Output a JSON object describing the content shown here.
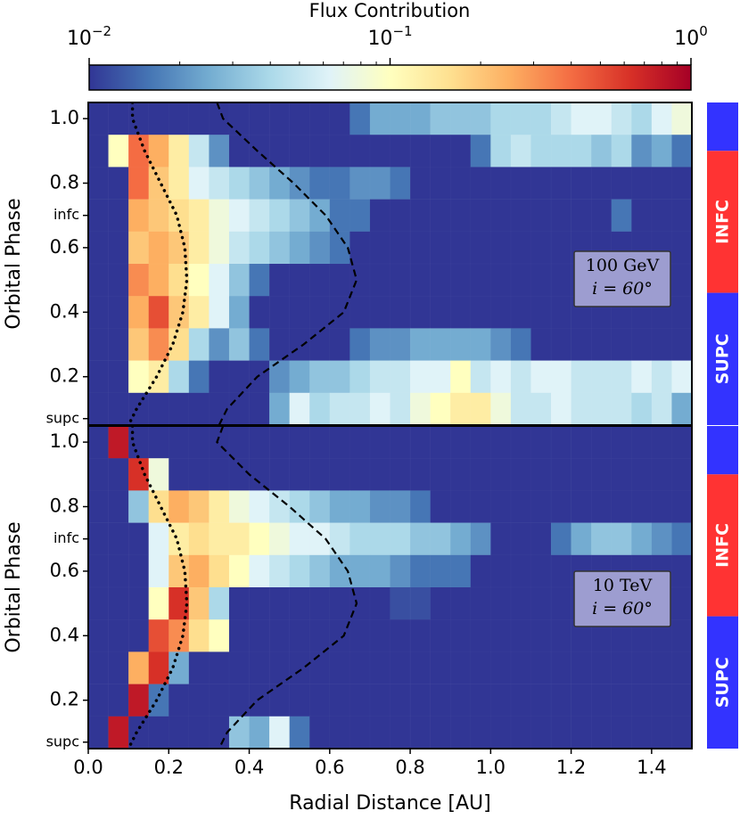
{
  "colorbar": {
    "title": "Flux Contribution",
    "lim": [
      0.01,
      1
    ],
    "log_scale": true,
    "ticks": [
      {
        "value": 0.01,
        "label": "10",
        "exponent": "−2"
      },
      {
        "value": 0.1,
        "label": "10",
        "exponent": "−1"
      },
      {
        "value": 1,
        "label": "10",
        "exponent": "0"
      }
    ],
    "minor_ticks": [
      0.02,
      0.03,
      0.04,
      0.05,
      0.06,
      0.07,
      0.08,
      0.09,
      0.2,
      0.3,
      0.4,
      0.5,
      0.6,
      0.7,
      0.8,
      0.9
    ],
    "colormap": [
      "#313695",
      "#4575b4",
      "#74add1",
      "#abd9e9",
      "#e0f3f8",
      "#ffffbf",
      "#fee090",
      "#fdae61",
      "#f46d43",
      "#d73027",
      "#a50026"
    ]
  },
  "chart_data": [
    {
      "type": "heatmap",
      "ylabel": "Orbital Phase",
      "xlim": [
        0,
        1.5
      ],
      "ylim": [
        0.05,
        1.05
      ],
      "yticks": [
        0.2,
        0.4,
        0.6,
        0.8,
        {
          "value": 1,
          "label": "1.0"
        },
        {
          "value": 0.7,
          "label": "infc"
        },
        {
          "value": 0.07,
          "label": "supc"
        }
      ],
      "x_bins": [
        0,
        0.05,
        0.1,
        0.15,
        0.2,
        0.25,
        0.3,
        0.35,
        0.4,
        0.45,
        0.5,
        0.55,
        0.6,
        0.65,
        0.7,
        0.75,
        0.8,
        0.85,
        0.9,
        0.95,
        1,
        1.05,
        1.1,
        1.15,
        1.2,
        1.25,
        1.3,
        1.35,
        1.4,
        1.45,
        1.5
      ],
      "y_bins": [
        1.05,
        0.95,
        0.85,
        0.75,
        0.65,
        0.55,
        0.45,
        0.35,
        0.25,
        0.15,
        0.05
      ],
      "values": [
        [
          0.01,
          0.01,
          0.01,
          0.01,
          0.01,
          0.01,
          0.01,
          0.01,
          0.01,
          0.01,
          0.01,
          0.01,
          0.01,
          0.016,
          0.025,
          0.025,
          0.025,
          0.032,
          0.032,
          0.032,
          0.04,
          0.04,
          0.04,
          0.05,
          0.063,
          0.063,
          0.05,
          0.04,
          0.063,
          0.079
        ],
        [
          0.01,
          0.1,
          0.4,
          0.25,
          0.13,
          0.05,
          0.02,
          0.01,
          0.01,
          0.01,
          0.01,
          0.01,
          0.01,
          0.01,
          0.01,
          0.01,
          0.01,
          0.01,
          0.01,
          0.016,
          0.04,
          0.05,
          0.04,
          0.04,
          0.04,
          0.032,
          0.04,
          0.02,
          0.025,
          0.016
        ],
        [
          0.01,
          0.01,
          0.4,
          0.2,
          0.13,
          0.063,
          0.05,
          0.04,
          0.032,
          0.025,
          0.02,
          0.016,
          0.016,
          0.02,
          0.02,
          0.016,
          0.01,
          0.01,
          0.01,
          0.01,
          0.01,
          0.01,
          0.01,
          0.01,
          0.01,
          0.01,
          0.01,
          0.01,
          0.01,
          0.01
        ],
        [
          0.01,
          0.01,
          0.25,
          0.2,
          0.16,
          0.13,
          0.079,
          0.063,
          0.05,
          0.04,
          0.032,
          0.025,
          0.016,
          0.016,
          0.01,
          0.01,
          0.01,
          0.01,
          0.01,
          0.01,
          0.01,
          0.01,
          0.01,
          0.01,
          0.01,
          0.01,
          0.016,
          0.01,
          0.01,
          0.01
        ],
        [
          0.01,
          0.01,
          0.2,
          0.25,
          0.2,
          0.13,
          0.079,
          0.05,
          0.04,
          0.032,
          0.025,
          0.02,
          0.016,
          0.01,
          0.01,
          0.01,
          0.01,
          0.01,
          0.01,
          0.01,
          0.01,
          0.01,
          0.01,
          0.01,
          0.01,
          0.01,
          0.01,
          0.01,
          0.01,
          0.01
        ],
        [
          0.01,
          0.01,
          0.32,
          0.25,
          0.16,
          0.1,
          0.063,
          0.032,
          0.016,
          0.01,
          0.01,
          0.01,
          0.01,
          0.01,
          0.01,
          0.01,
          0.01,
          0.01,
          0.01,
          0.01,
          0.01,
          0.01,
          0.01,
          0.01,
          0.01,
          0.01,
          0.01,
          0.01,
          0.01,
          0.01
        ],
        [
          0.01,
          0.01,
          0.25,
          0.5,
          0.2,
          0.13,
          0.063,
          0.025,
          0.01,
          0.01,
          0.01,
          0.01,
          0.01,
          0.01,
          0.01,
          0.01,
          0.01,
          0.01,
          0.01,
          0.01,
          0.01,
          0.01,
          0.01,
          0.01,
          0.01,
          0.01,
          0.01,
          0.01,
          0.01,
          0.01
        ],
        [
          0.01,
          0.01,
          0.2,
          0.32,
          0.16,
          0.04,
          0.02,
          0.032,
          0.016,
          0.01,
          0.01,
          0.01,
          0.01,
          0.016,
          0.02,
          0.02,
          0.025,
          0.025,
          0.025,
          0.025,
          0.02,
          0.016,
          0.01,
          0.01,
          0.01,
          0.01,
          0.01,
          0.01,
          0.01,
          0.01
        ],
        [
          0.01,
          0.01,
          0.1,
          0.13,
          0.04,
          0.016,
          0.01,
          0.01,
          0.01,
          0.02,
          0.025,
          0.032,
          0.032,
          0.04,
          0.05,
          0.05,
          0.063,
          0.063,
          0.1,
          0.05,
          0.063,
          0.05,
          0.063,
          0.063,
          0.05,
          0.05,
          0.05,
          0.063,
          0.05,
          0.063
        ],
        [
          0.01,
          0.01,
          0.01,
          0.01,
          0.01,
          0.01,
          0.01,
          0.01,
          0.01,
          0.025,
          0.063,
          0.04,
          0.05,
          0.05,
          0.063,
          0.05,
          0.079,
          0.1,
          0.13,
          0.13,
          0.079,
          0.05,
          0.05,
          0.063,
          0.05,
          0.05,
          0.05,
          0.04,
          0.05,
          0.025
        ]
      ],
      "curves": [
        {
          "style": "dotted",
          "x": [
            0.11,
            0.11,
            0.14,
            0.18,
            0.22,
            0.24,
            0.245,
            0.235,
            0.21,
            0.17,
            0.12,
            0.1
          ],
          "y": [
            1.05,
            1,
            0.9,
            0.8,
            0.7,
            0.6,
            0.5,
            0.4,
            0.3,
            0.2,
            0.1,
            0.05
          ]
        },
        {
          "style": "dashed",
          "x": [
            0.32,
            0.335,
            0.42,
            0.51,
            0.59,
            0.645,
            0.667,
            0.635,
            0.535,
            0.42,
            0.345,
            0.325
          ],
          "y": [
            1.05,
            1,
            0.9,
            0.8,
            0.7,
            0.6,
            0.5,
            0.4,
            0.3,
            0.2,
            0.1,
            0.05
          ]
        }
      ],
      "annotation": [
        "100 GeV",
        "i = 60°"
      ],
      "bands": [
        {
          "from": 0.9,
          "to": 1.05,
          "color": "#3333ff"
        },
        {
          "from": 0.46,
          "to": 0.9,
          "color": "#ff3333",
          "label": "INFC"
        },
        {
          "from": 0.05,
          "to": 0.46,
          "color": "#3333ff",
          "label": "SUPC"
        }
      ]
    },
    {
      "type": "heatmap",
      "ylabel": "Orbital Phase",
      "xlabel": "Radial Distance [AU]",
      "xlim": [
        0,
        1.5
      ],
      "ylim": [
        0.05,
        1.05
      ],
      "xticks": [
        {
          "value": 0,
          "label": "0.0"
        },
        0.2,
        0.4,
        0.6,
        0.8,
        {
          "value": 1,
          "label": "1.0"
        },
        1.2,
        1.4
      ],
      "yticks": [
        0.2,
        0.4,
        0.6,
        0.8,
        {
          "value": 1,
          "label": "1.0"
        },
        {
          "value": 0.7,
          "label": "infc"
        },
        {
          "value": 0.07,
          "label": "supc"
        }
      ],
      "x_bins": [
        0,
        0.05,
        0.1,
        0.15,
        0.2,
        0.25,
        0.3,
        0.35,
        0.4,
        0.45,
        0.5,
        0.55,
        0.6,
        0.65,
        0.7,
        0.75,
        0.8,
        0.85,
        0.9,
        0.95,
        1,
        1.05,
        1.1,
        1.15,
        1.2,
        1.25,
        1.3,
        1.35,
        1.4,
        1.45,
        1.5
      ],
      "y_bins": [
        1.05,
        0.95,
        0.85,
        0.75,
        0.65,
        0.55,
        0.45,
        0.35,
        0.25,
        0.15,
        0.05
      ],
      "values": [
        [
          0.01,
          0.79,
          0.01,
          0.01,
          0.01,
          0.01,
          0.01,
          0.01,
          0.01,
          0.01,
          0.01,
          0.01,
          0.01,
          0.01,
          0.01,
          0.01,
          0.01,
          0.01,
          0.01,
          0.01,
          0.01,
          0.01,
          0.01,
          0.01,
          0.01,
          0.01,
          0.01,
          0.01,
          0.01,
          0.01
        ],
        [
          0.01,
          0.01,
          0.63,
          0.079,
          0.01,
          0.01,
          0.01,
          0.01,
          0.01,
          0.01,
          0.01,
          0.01,
          0.01,
          0.01,
          0.01,
          0.01,
          0.01,
          0.01,
          0.01,
          0.01,
          0.01,
          0.01,
          0.01,
          0.01,
          0.01,
          0.01,
          0.01,
          0.01,
          0.01,
          0.01
        ],
        [
          0.01,
          0.01,
          0.032,
          0.16,
          0.25,
          0.2,
          0.13,
          0.079,
          0.063,
          0.05,
          0.04,
          0.032,
          0.025,
          0.025,
          0.02,
          0.02,
          0.016,
          0.01,
          0.01,
          0.01,
          0.01,
          0.01,
          0.01,
          0.01,
          0.01,
          0.01,
          0.01,
          0.01,
          0.01,
          0.01
        ],
        [
          0.01,
          0.01,
          0.01,
          0.063,
          0.13,
          0.16,
          0.13,
          0.13,
          0.1,
          0.079,
          0.063,
          0.063,
          0.05,
          0.04,
          0.04,
          0.04,
          0.032,
          0.032,
          0.025,
          0.02,
          0.01,
          0.01,
          0.01,
          0.016,
          0.025,
          0.032,
          0.032,
          0.025,
          0.02,
          0.016
        ],
        [
          0.01,
          0.01,
          0.01,
          0.063,
          0.2,
          0.25,
          0.16,
          0.1,
          0.063,
          0.05,
          0.04,
          0.032,
          0.025,
          0.025,
          0.025,
          0.02,
          0.016,
          0.016,
          0.016,
          0.01,
          0.01,
          0.01,
          0.01,
          0.01,
          0.01,
          0.01,
          0.01,
          0.01,
          0.01,
          0.01
        ],
        [
          0.01,
          0.01,
          0.01,
          0.1,
          0.63,
          0.2,
          0.04,
          0.01,
          0.01,
          0.01,
          0.01,
          0.01,
          0.01,
          0.01,
          0.01,
          0.012,
          0.012,
          0.01,
          0.01,
          0.01,
          0.01,
          0.01,
          0.01,
          0.01,
          0.01,
          0.01,
          0.01,
          0.01,
          0.01,
          0.01
        ],
        [
          0.01,
          0.01,
          0.01,
          0.5,
          0.32,
          0.16,
          0.1,
          0.01,
          0.01,
          0.01,
          0.01,
          0.01,
          0.01,
          0.01,
          0.01,
          0.01,
          0.01,
          0.01,
          0.01,
          0.01,
          0.01,
          0.01,
          0.01,
          0.01,
          0.01,
          0.01,
          0.01,
          0.01,
          0.01,
          0.01
        ],
        [
          0.01,
          0.01,
          0.25,
          0.63,
          0.025,
          0.01,
          0.01,
          0.01,
          0.01,
          0.01,
          0.01,
          0.01,
          0.01,
          0.01,
          0.01,
          0.01,
          0.01,
          0.01,
          0.01,
          0.01,
          0.01,
          0.01,
          0.01,
          0.01,
          0.01,
          0.01,
          0.01,
          0.01,
          0.01,
          0.01
        ],
        [
          0.01,
          0.01,
          0.79,
          0.016,
          0.01,
          0.01,
          0.01,
          0.01,
          0.01,
          0.01,
          0.01,
          0.01,
          0.01,
          0.01,
          0.01,
          0.01,
          0.01,
          0.01,
          0.01,
          0.01,
          0.01,
          0.01,
          0.01,
          0.01,
          0.01,
          0.01,
          0.01,
          0.01,
          0.01,
          0.01
        ],
        [
          0.01,
          0.79,
          0.01,
          0.01,
          0.01,
          0.01,
          0.01,
          0.032,
          0.025,
          0.063,
          0.016,
          0.01,
          0.01,
          0.01,
          0.01,
          0.01,
          0.01,
          0.01,
          0.01,
          0.01,
          0.01,
          0.01,
          0.01,
          0.01,
          0.01,
          0.01,
          0.01,
          0.01,
          0.01,
          0.01
        ]
      ],
      "curves": [
        {
          "style": "dotted",
          "x": [
            0.11,
            0.11,
            0.14,
            0.18,
            0.22,
            0.24,
            0.245,
            0.235,
            0.21,
            0.17,
            0.12,
            0.1
          ],
          "y": [
            1.05,
            1,
            0.9,
            0.8,
            0.7,
            0.6,
            0.5,
            0.4,
            0.3,
            0.2,
            0.1,
            0.05
          ]
        },
        {
          "style": "dashed",
          "x": [
            0.335,
            0.32,
            0.4,
            0.5,
            0.59,
            0.645,
            0.667,
            0.635,
            0.535,
            0.42,
            0.345,
            0.325
          ],
          "y": [
            1.05,
            1,
            0.9,
            0.8,
            0.7,
            0.6,
            0.5,
            0.4,
            0.3,
            0.2,
            0.1,
            0.05
          ]
        }
      ],
      "annotation": [
        "10 TeV",
        "i = 60°"
      ],
      "bands": [
        {
          "from": 0.9,
          "to": 1.05,
          "color": "#3333ff"
        },
        {
          "from": 0.46,
          "to": 0.9,
          "color": "#ff3333",
          "label": "INFC"
        },
        {
          "from": 0.05,
          "to": 0.46,
          "color": "#3333ff",
          "label": "SUPC"
        }
      ]
    }
  ]
}
